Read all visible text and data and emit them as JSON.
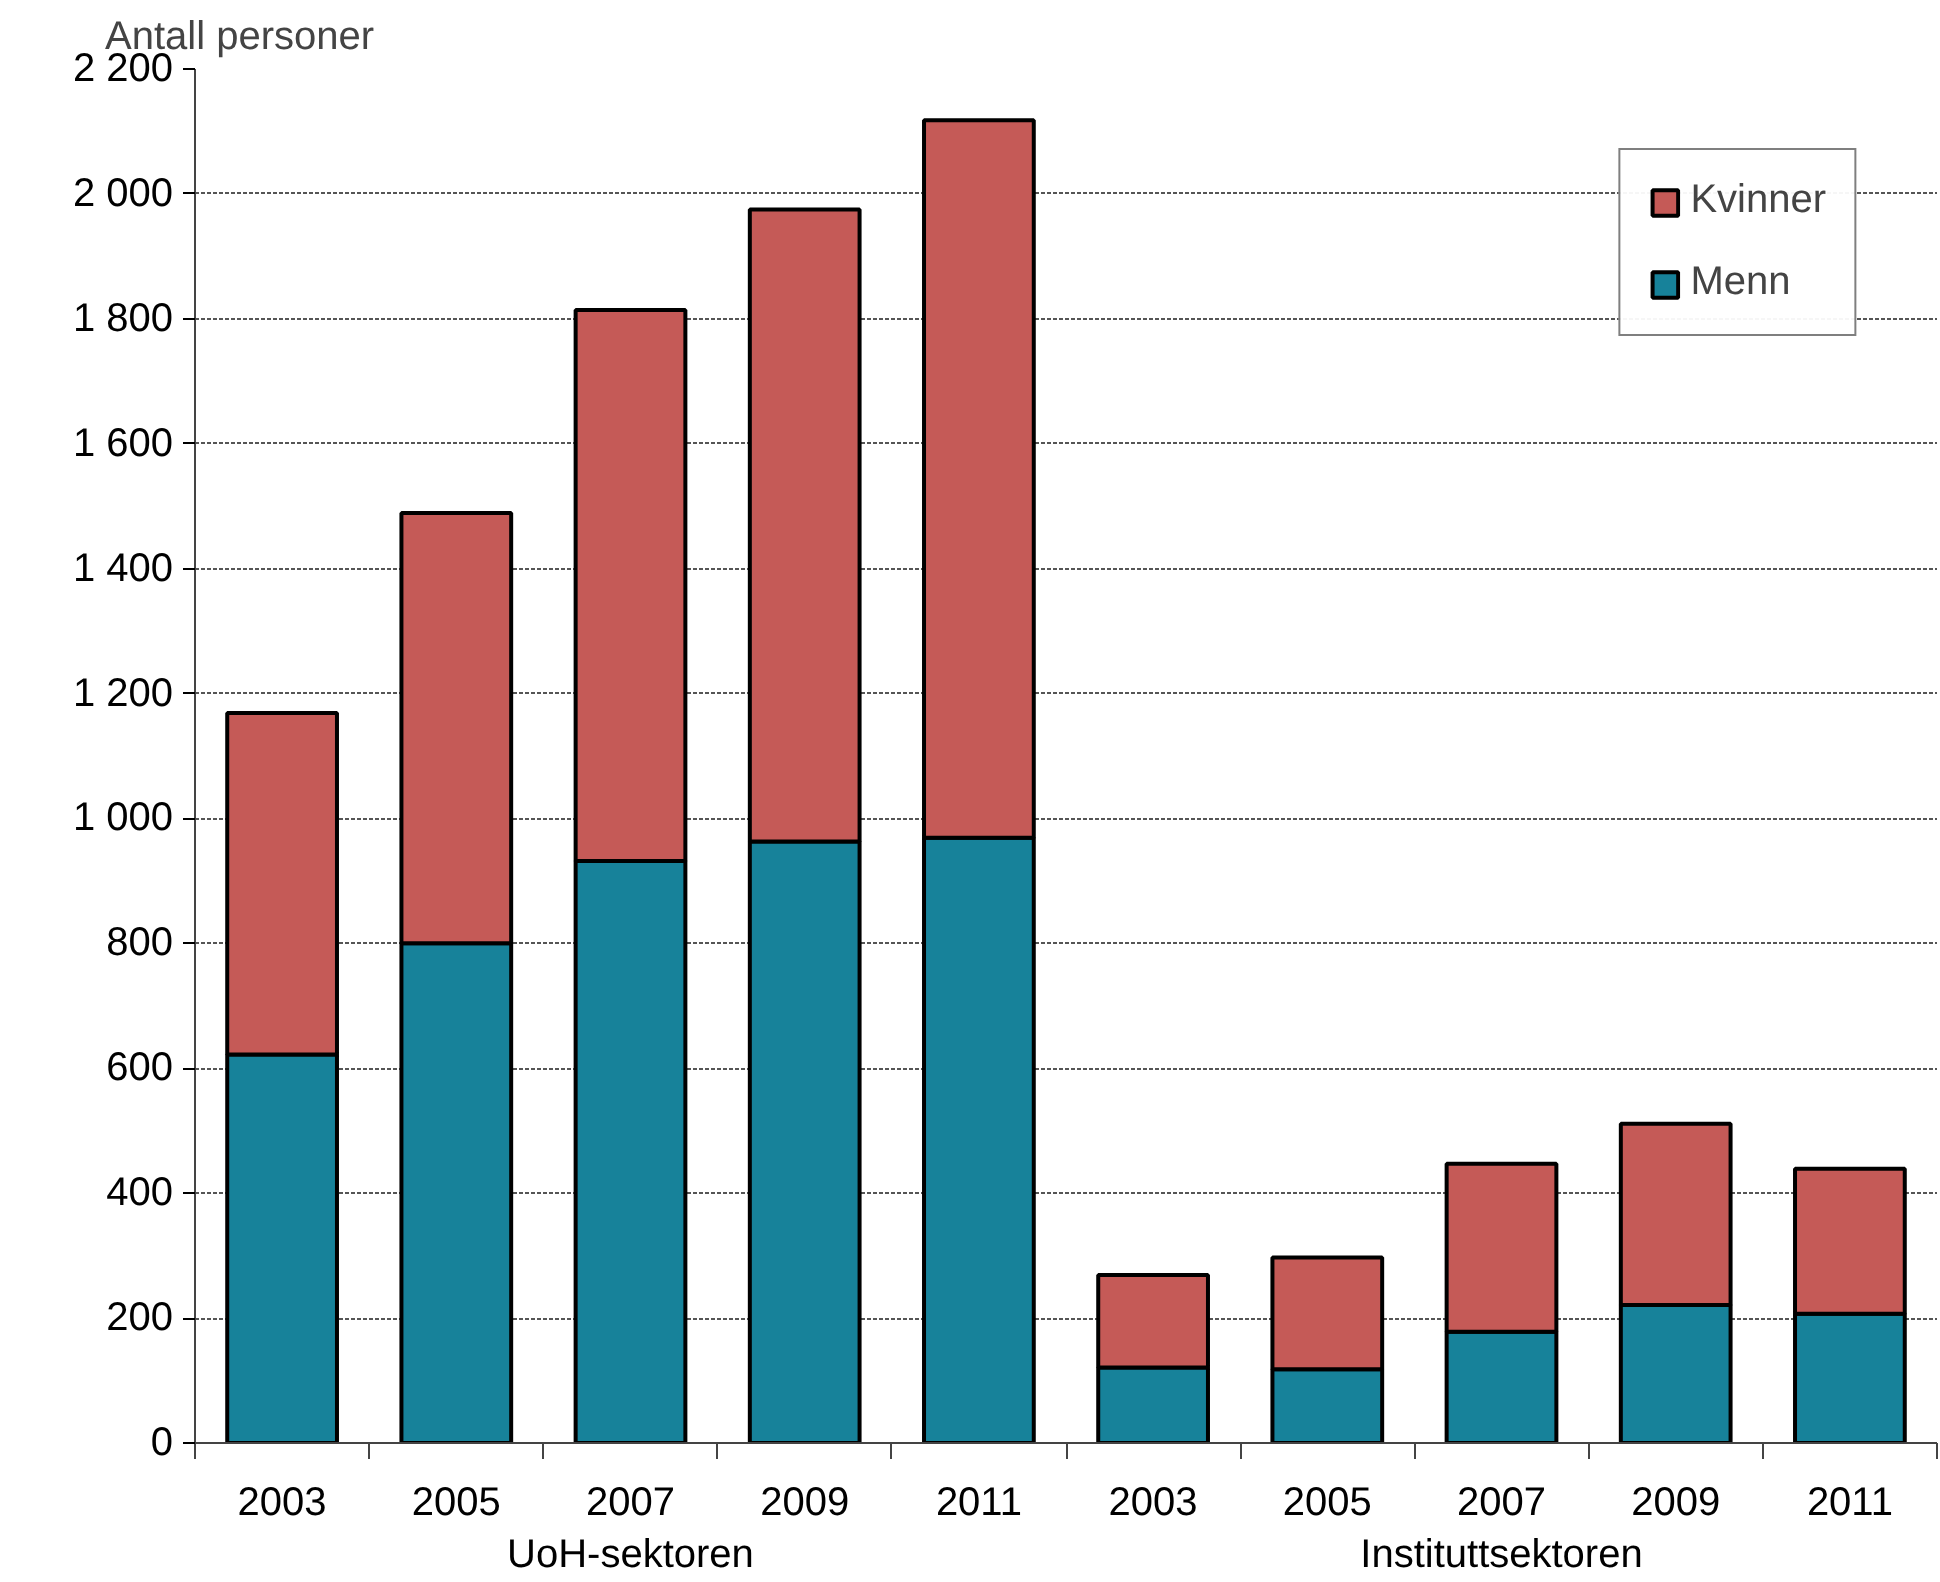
{
  "chart_data": {
    "type": "bar",
    "stacked": true,
    "ylabel": "Antall personer",
    "categories": [
      "2003",
      "2005",
      "2007",
      "2009",
      "2011",
      "2003",
      "2005",
      "2007",
      "2009",
      "2011"
    ],
    "series": [
      {
        "name": "Menn",
        "color": "#17829a",
        "values": [
          622,
          800,
          932,
          963,
          969,
          121,
          118,
          178,
          221,
          207
        ]
      },
      {
        "name": "Kvinner",
        "color": "#c55a57",
        "values": [
          547,
          689,
          882,
          1012,
          1149,
          148,
          179,
          269,
          290,
          232
        ]
      }
    ],
    "ylim": [
      0,
      2200
    ],
    "yticks": [
      0,
      200,
      400,
      600,
      800,
      {
        "value": 1000,
        "label": "1 000"
      },
      {
        "value": 1200,
        "label": "1 200"
      },
      {
        "value": 1400,
        "label": "1 400"
      },
      {
        "value": 1600,
        "label": "1 600"
      },
      {
        "value": 1800,
        "label": "1 800"
      },
      {
        "value": 2000,
        "label": "2 000"
      },
      {
        "value": 2200,
        "label": "2 200"
      }
    ],
    "annotations": [
      "UoH-sektoren",
      "Instituttsektoren"
    ],
    "grid": "y",
    "legend": "top right"
  }
}
